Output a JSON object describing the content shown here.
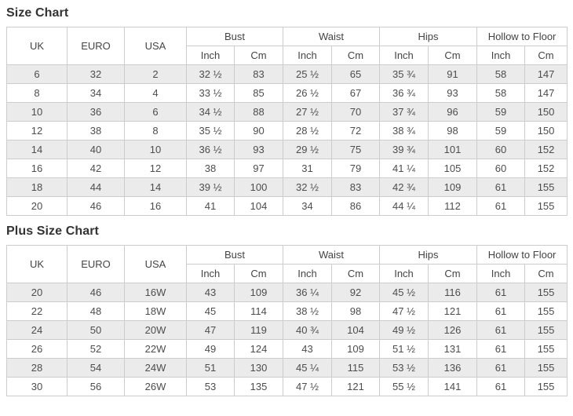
{
  "titles": {
    "size_chart": "Size Chart",
    "plus_size_chart": "Plus Size Chart"
  },
  "columns": {
    "uk": "UK",
    "euro": "EURO",
    "usa": "USA",
    "groups": [
      "Bust",
      "Waist",
      "Hips",
      "Hollow to Floor"
    ],
    "inch": "Inch",
    "cm": "Cm"
  },
  "size_chart": {
    "rows": [
      [
        "6",
        "32",
        "2",
        "32 ½",
        "83",
        "25 ½",
        "65",
        "35 ¾",
        "91",
        "58",
        "147"
      ],
      [
        "8",
        "34",
        "4",
        "33 ½",
        "85",
        "26 ½",
        "67",
        "36 ¾",
        "93",
        "58",
        "147"
      ],
      [
        "10",
        "36",
        "6",
        "34 ½",
        "88",
        "27 ½",
        "70",
        "37 ¾",
        "96",
        "59",
        "150"
      ],
      [
        "12",
        "38",
        "8",
        "35 ½",
        "90",
        "28 ½",
        "72",
        "38 ¾",
        "98",
        "59",
        "150"
      ],
      [
        "14",
        "40",
        "10",
        "36 ½",
        "93",
        "29 ½",
        "75",
        "39 ¾",
        "101",
        "60",
        "152"
      ],
      [
        "16",
        "42",
        "12",
        "38",
        "97",
        "31",
        "79",
        "41 ¼",
        "105",
        "60",
        "152"
      ],
      [
        "18",
        "44",
        "14",
        "39 ½",
        "100",
        "32 ½",
        "83",
        "42 ¾",
        "109",
        "61",
        "155"
      ],
      [
        "20",
        "46",
        "16",
        "41",
        "104",
        "34",
        "86",
        "44 ¼",
        "112",
        "61",
        "155"
      ]
    ]
  },
  "plus_size_chart": {
    "rows": [
      [
        "20",
        "46",
        "16W",
        "43",
        "109",
        "36 ¼",
        "92",
        "45 ½",
        "116",
        "61",
        "155"
      ],
      [
        "22",
        "48",
        "18W",
        "45",
        "114",
        "38 ½",
        "98",
        "47 ½",
        "121",
        "61",
        "155"
      ],
      [
        "24",
        "50",
        "20W",
        "47",
        "119",
        "40 ¾",
        "104",
        "49 ½",
        "126",
        "61",
        "155"
      ],
      [
        "26",
        "52",
        "22W",
        "49",
        "124",
        "43",
        "109",
        "51 ½",
        "131",
        "61",
        "155"
      ],
      [
        "28",
        "54",
        "24W",
        "51",
        "130",
        "45 ¼",
        "115",
        "53 ½",
        "136",
        "61",
        "155"
      ],
      [
        "30",
        "56",
        "26W",
        "53",
        "135",
        "47 ½",
        "121",
        "55 ½",
        "141",
        "61",
        "155"
      ]
    ]
  },
  "colors": {
    "row_alt_background": "#ebebeb",
    "border": "#cccccc",
    "text": "#4d4d4d",
    "title_text": "#333333"
  }
}
